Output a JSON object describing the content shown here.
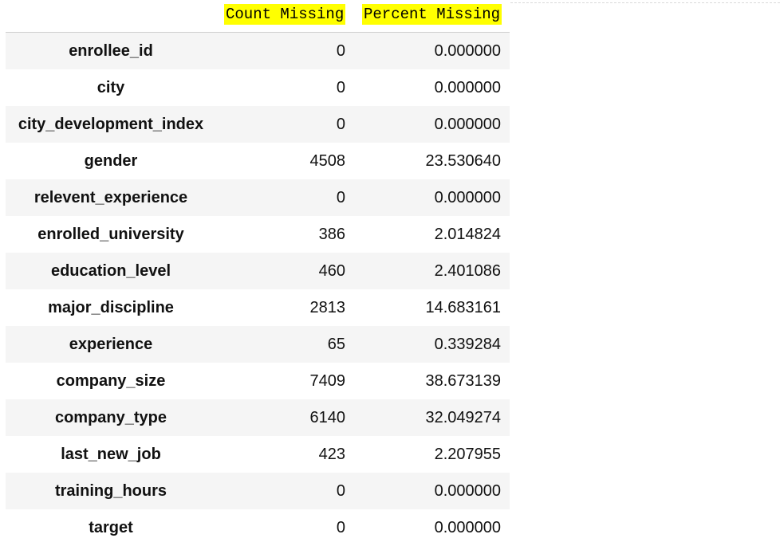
{
  "headers": {
    "count": "Count Missing",
    "percent": "Percent Missing"
  },
  "rows": [
    {
      "name": "enrollee_id",
      "count": "0",
      "percent": "0.000000"
    },
    {
      "name": "city",
      "count": "0",
      "percent": "0.000000"
    },
    {
      "name": "city_development_index",
      "count": "0",
      "percent": "0.000000"
    },
    {
      "name": "gender",
      "count": "4508",
      "percent": "23.530640"
    },
    {
      "name": "relevent_experience",
      "count": "0",
      "percent": "0.000000"
    },
    {
      "name": "enrolled_university",
      "count": "386",
      "percent": "2.014824"
    },
    {
      "name": "education_level",
      "count": "460",
      "percent": "2.401086"
    },
    {
      "name": "major_discipline",
      "count": "2813",
      "percent": "14.683161"
    },
    {
      "name": "experience",
      "count": "65",
      "percent": "0.339284"
    },
    {
      "name": "company_size",
      "count": "7409",
      "percent": "38.673139"
    },
    {
      "name": "company_type",
      "count": "6140",
      "percent": "32.049274"
    },
    {
      "name": "last_new_job",
      "count": "423",
      "percent": "2.207955"
    },
    {
      "name": "training_hours",
      "count": "0",
      "percent": "0.000000"
    },
    {
      "name": "target",
      "count": "0",
      "percent": "0.000000"
    }
  ],
  "colors": {
    "header_highlight": "#ffff00",
    "row_shade": "#f5f5f5"
  }
}
